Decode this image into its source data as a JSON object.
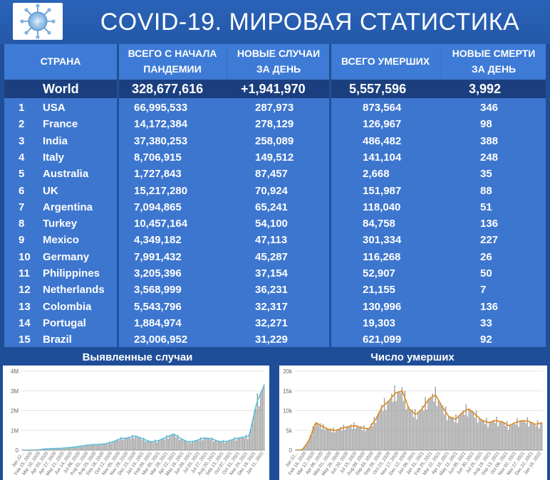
{
  "title": "COVID-19. МИРОВАЯ СТАТИСТИКА",
  "logo": "virus-icon",
  "table": {
    "headers": {
      "country": "СТРАНА",
      "total_1": "ВСЕГО С НАЧАЛА",
      "total_2": "ПАНДЕМИИ",
      "new_1": "НОВЫЕ СЛУЧАИ",
      "new_2": "ЗА ДЕНЬ",
      "deaths": "ВСЕГО УМЕРШИХ",
      "new_deaths_1": "НОВЫЕ СМЕРТИ",
      "new_deaths_2": "ЗА ДЕНЬ"
    },
    "world": {
      "name": "World",
      "total": "328,677,616",
      "new": "+1,941,970",
      "deaths": "5,557,596",
      "new_deaths": "3,992"
    },
    "rows": [
      {
        "rank": "1",
        "country": "USA",
        "total": "66,995,533",
        "new": "287,973",
        "deaths": "873,564",
        "new_deaths": "346"
      },
      {
        "rank": "2",
        "country": "France",
        "total": "14,172,384",
        "new": "278,129",
        "deaths": "126,967",
        "new_deaths": "98"
      },
      {
        "rank": "3",
        "country": "India",
        "total": "37,380,253",
        "new": "258,089",
        "deaths": "486,482",
        "new_deaths": "388"
      },
      {
        "rank": "4",
        "country": "Italy",
        "total": "8,706,915",
        "new": "149,512",
        "deaths": "141,104",
        "new_deaths": "248"
      },
      {
        "rank": "5",
        "country": "Australia",
        "total": "1,727,843",
        "new": "87,457",
        "deaths": "2,668",
        "new_deaths": "35"
      },
      {
        "rank": "6",
        "country": "UK",
        "total": "15,217,280",
        "new": "70,924",
        "deaths": "151,987",
        "new_deaths": "88"
      },
      {
        "rank": "7",
        "country": "Argentina",
        "total": "7,094,865",
        "new": "65,241",
        "deaths": "118,040",
        "new_deaths": "51"
      },
      {
        "rank": "8",
        "country": "Turkey",
        "total": "10,457,164",
        "new": "54,100",
        "deaths": "84,758",
        "new_deaths": "136"
      },
      {
        "rank": "9",
        "country": "Mexico",
        "total": "4,349,182",
        "new": "47,113",
        "deaths": "301,334",
        "new_deaths": "227"
      },
      {
        "rank": "10",
        "country": "Germany",
        "total": "7,991,432",
        "new": "45,287",
        "deaths": "116,268",
        "new_deaths": "26"
      },
      {
        "rank": "11",
        "country": "Philippines",
        "total": "3,205,396",
        "new": "37,154",
        "deaths": "52,907",
        "new_deaths": "50"
      },
      {
        "rank": "12",
        "country": "Netherlands",
        "total": "3,568,999",
        "new": "36,231",
        "deaths": "21,155",
        "new_deaths": "7"
      },
      {
        "rank": "13",
        "country": "Colombia",
        "total": "5,543,796",
        "new": "32,317",
        "deaths": "130,996",
        "new_deaths": "136"
      },
      {
        "rank": "14",
        "country": "Portugal",
        "total": "1,884,974",
        "new": "32,271",
        "deaths": "19,303",
        "new_deaths": "33"
      },
      {
        "rank": "15",
        "country": "Brazil",
        "total": "23,006,952",
        "new": "31,229",
        "deaths": "621,099",
        "new_deaths": "92"
      }
    ]
  },
  "charts": {
    "cases_label": "Выявленные случаи",
    "deaths_label": "Число умерших"
  },
  "chart_data": [
    {
      "type": "bar",
      "title": "Выявленные случаи",
      "yticks": [
        "0",
        "1M",
        "2M",
        "3M",
        "4M"
      ],
      "ylim": [
        0,
        4000000
      ],
      "xticks": [
        "Jan 22...",
        "Feb 15, 2020",
        "Mar 10, 2020",
        "Apr 03, 2020",
        "Apr 27, 2020",
        "May 21, 2020",
        "Jun 14, 2020",
        "Jul 08, 2020",
        "Aug 01, 2020",
        "Aug 25, 2020",
        "Sep 18, 2020",
        "Oct 12, 2020",
        "Nov 05, 2020",
        "Nov 29, 2020",
        "Dec 23, 2020",
        "Jan 16, 2021",
        "Feb 09, 2021",
        "Mar 05, 2021",
        "Mar 29, 2021",
        "Apr 22, 2021",
        "May 16, 2021",
        "Jun 09, 2021",
        "Jul 03, 2021",
        "Jul 27, 2021",
        "Aug 20, 2021",
        "Sep 13, 2021",
        "Oct 07, 2021",
        "Oct 31, 2021",
        "Nov 24, 2021",
        "Dec 18, 2021",
        "Jan 11, 2022"
      ],
      "series": [
        {
          "values": [
            0,
            2000,
            5000,
            60000,
            80000,
            90000,
            120000,
            160000,
            220000,
            270000,
            290000,
            320000,
            420000,
            580000,
            620000,
            720000,
            560000,
            420000,
            480000,
            640000,
            820000,
            580000,
            400000,
            480000,
            620000,
            580000,
            440000,
            440000,
            560000,
            650000,
            700000,
            2400000,
            3300000
          ]
        }
      ]
    },
    {
      "type": "bar",
      "title": "Число умерших",
      "yticks": [
        "0",
        "5k",
        "10k",
        "15k",
        "20k"
      ],
      "ylim": [
        0,
        20000
      ],
      "xticks": [
        "Jan 22...",
        "Feb 16, 2020",
        "Mar 12, 2020",
        "Apr 06, 2020",
        "May 01, 2020",
        "May 26, 2020",
        "Jun 20, 2020",
        "Jul 15, 2020",
        "Aug 09, 2020",
        "Sep 03, 2020",
        "Sep 28, 2020",
        "Oct 23, 2020",
        "Nov 17, 2020",
        "Dec 12, 2020",
        "Jan 06, 2021",
        "Jan 31, 2021",
        "Feb 25, 2021",
        "Mar 22, 2021",
        "Apr 16, 2021",
        "May 11, 2021",
        "Jun 05, 2021",
        "Jun 30, 2021",
        "Jul 25, 2021",
        "Aug 19, 2021",
        "Sep 13, 2021",
        "Oct 08, 2021",
        "Nov 02, 2021",
        "Nov 27, 2021",
        "Dec 22, 2021",
        "Jan 16, 2022"
      ],
      "series": [
        {
          "values": [
            0,
            100,
            2500,
            7000,
            6000,
            5200,
            5000,
            5600,
            6000,
            6200,
            5600,
            5400,
            7800,
            11000,
            12500,
            14500,
            15000,
            10500,
            9000,
            10500,
            13000,
            14000,
            11000,
            8500,
            7800,
            9500,
            10500,
            9000,
            7500,
            7000,
            7500,
            7200,
            6200,
            7000,
            7500,
            7300,
            6500,
            7000
          ]
        }
      ]
    }
  ]
}
